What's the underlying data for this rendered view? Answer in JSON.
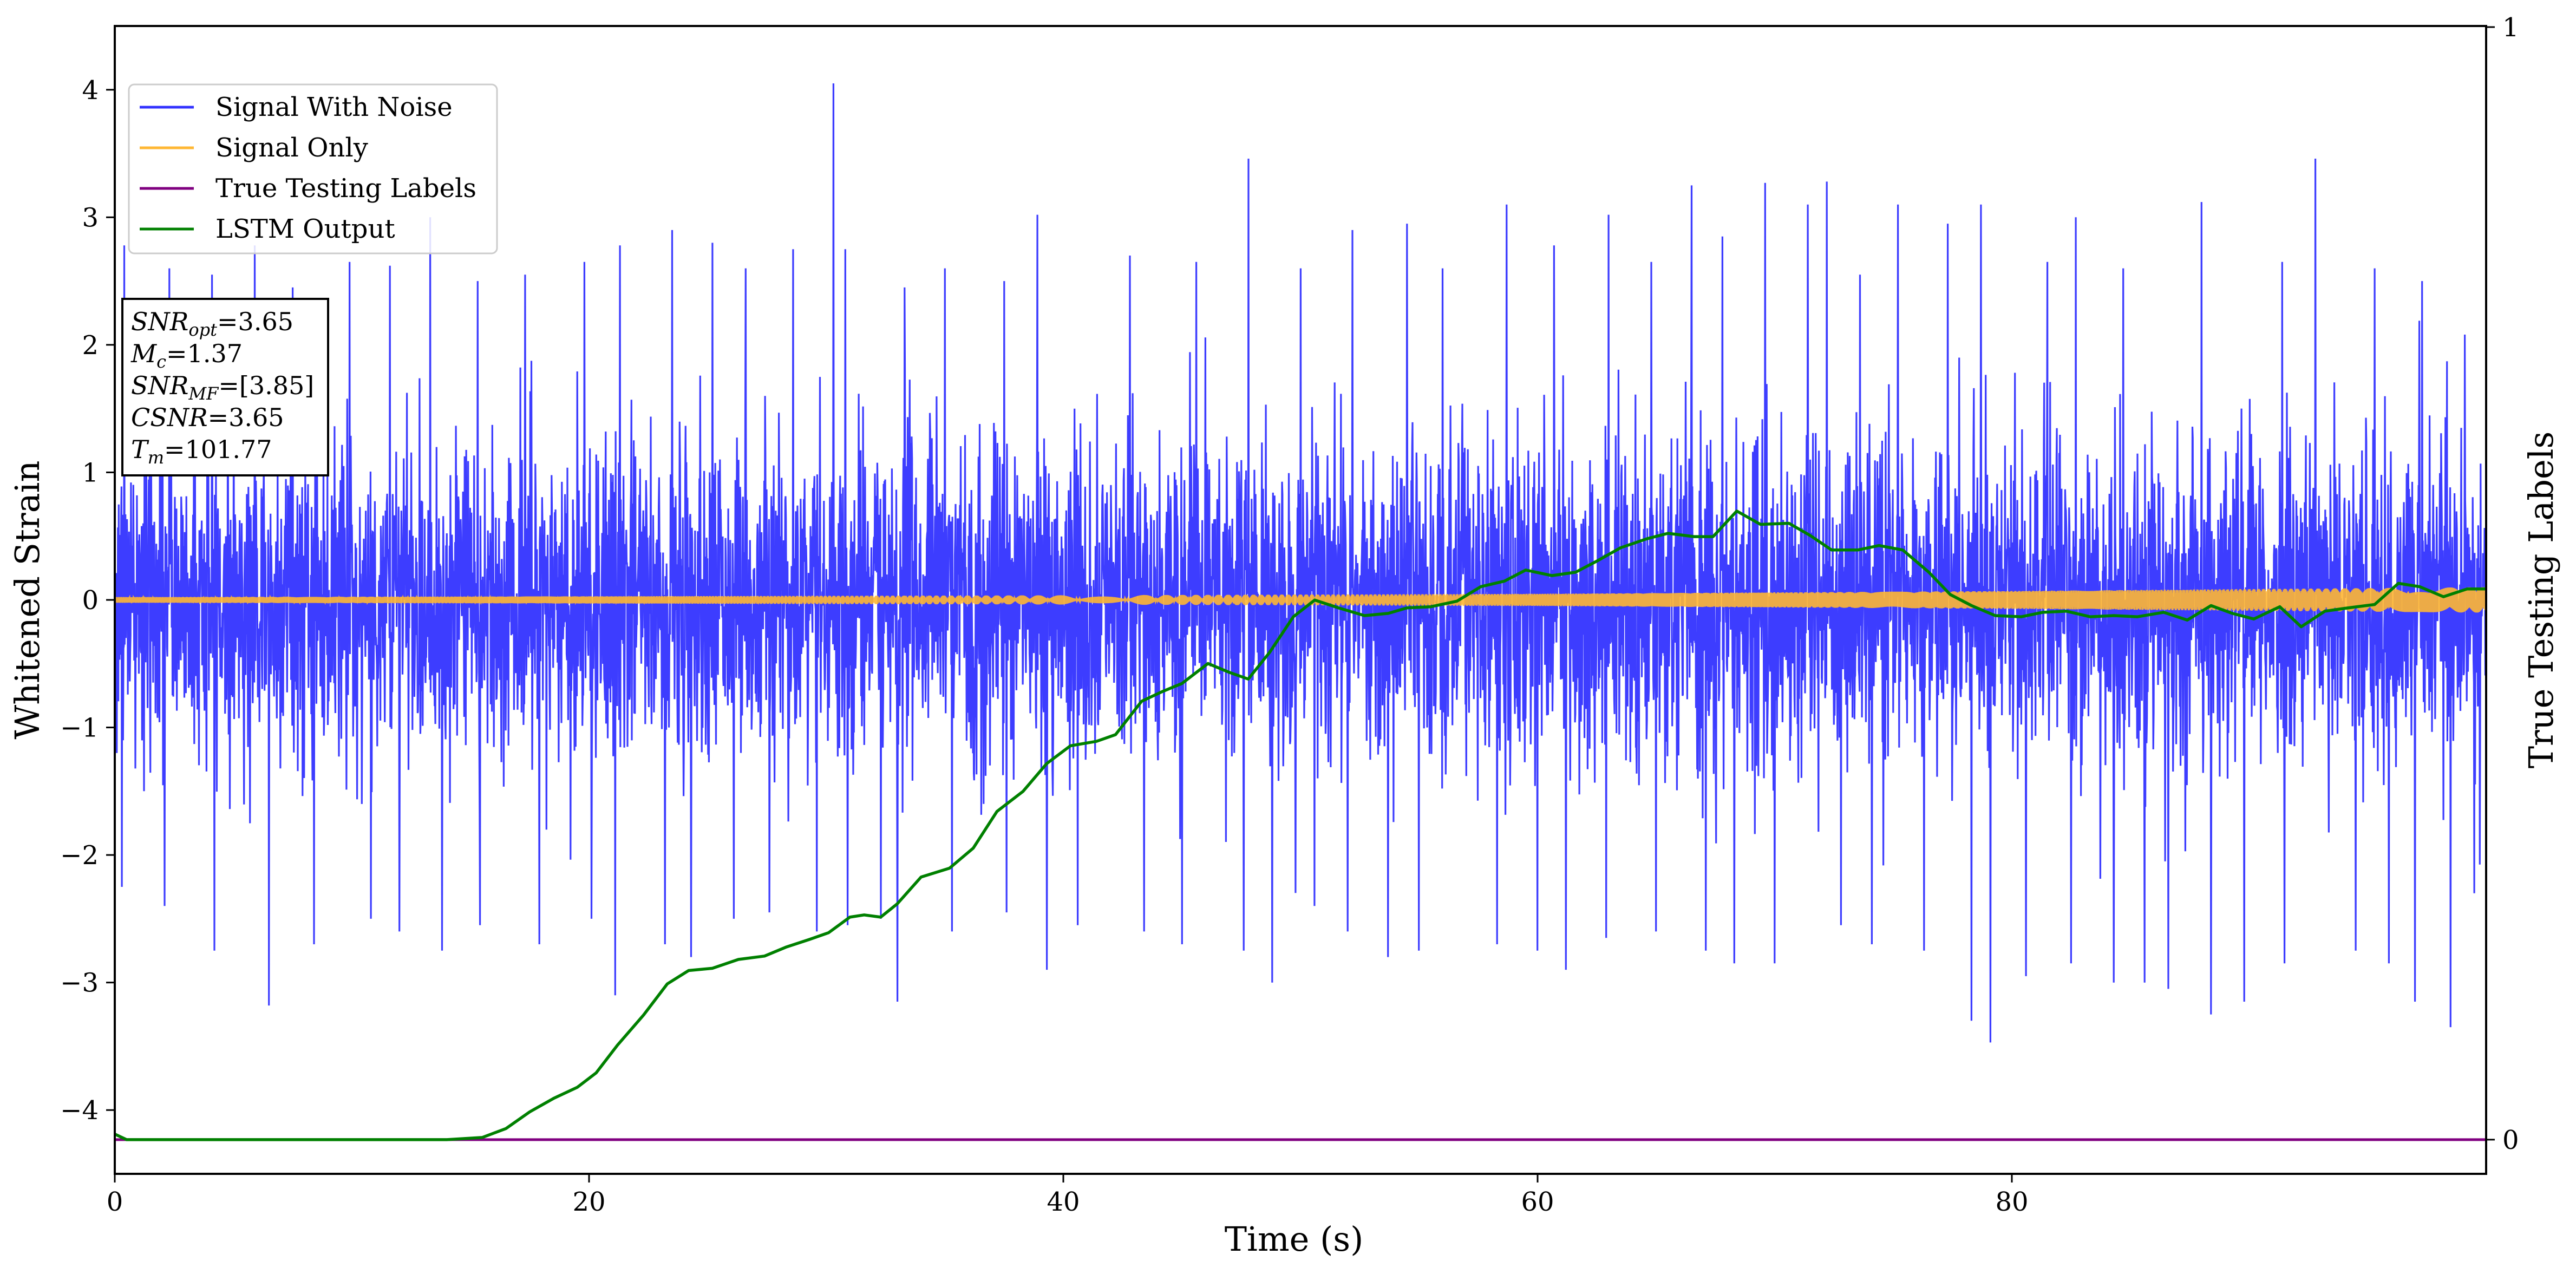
{
  "chart_data": {
    "type": "line",
    "xlabel": "Time (s)",
    "ylabel": "Whitened Strain",
    "ylabel_right": "True Testing Labels",
    "xlim": [
      0,
      100
    ],
    "ylim": [
      -4.5,
      4.5
    ],
    "ylim_right": [
      0,
      1
    ],
    "x_ticks": [
      0,
      20,
      40,
      60,
      80
    ],
    "x_tick_labels": [
      "0",
      "20",
      "40",
      "60",
      "80"
    ],
    "y_ticks": [
      -4,
      -3,
      -2,
      -1,
      0,
      1,
      2,
      3,
      4
    ],
    "y_tick_labels": [
      "−4",
      "−3",
      "−2",
      "−1",
      "0",
      "1",
      "2",
      "3",
      "4"
    ],
    "y_right_ticks": [
      0,
      1
    ],
    "y_right_tick_labels": [
      "0",
      "1"
    ],
    "grid": false,
    "legend_position": "top-left",
    "series": [
      {
        "name": "Signal With Noise",
        "axis": "left",
        "color": "#3333ff",
        "description": "whitened noise plus signal, approx. ±1.2 typical, peaks to +4.05 near t=30.3, trough -3.47 near t=79",
        "spikes_up": [
          [
            0.4,
            2.78
          ],
          [
            2.3,
            2.6
          ],
          [
            4.1,
            2.55
          ],
          [
            5.9,
            2.78
          ],
          [
            7.5,
            2.45
          ],
          [
            9.9,
            2.65
          ],
          [
            11.6,
            2.62
          ],
          [
            13.3,
            3.0
          ],
          [
            15.3,
            2.5
          ],
          [
            17.3,
            2.55
          ],
          [
            19.8,
            2.65
          ],
          [
            21.3,
            2.78
          ],
          [
            23.5,
            2.9
          ],
          [
            25.2,
            2.8
          ],
          [
            26.6,
            2.6
          ],
          [
            28.6,
            2.75
          ],
          [
            30.3,
            4.05
          ],
          [
            30.8,
            2.75
          ],
          [
            33.3,
            2.45
          ],
          [
            35.0,
            2.6
          ],
          [
            37.5,
            2.5
          ],
          [
            38.9,
            3.02
          ],
          [
            40.6,
            2.6
          ],
          [
            42.8,
            2.7
          ],
          [
            45.6,
            2.65
          ],
          [
            47.8,
            3.46
          ],
          [
            50.0,
            2.6
          ],
          [
            52.2,
            2.9
          ],
          [
            54.5,
            2.95
          ],
          [
            56.0,
            2.6
          ],
          [
            58.7,
            3.1
          ],
          [
            60.7,
            2.78
          ],
          [
            63.0,
            3.02
          ],
          [
            64.8,
            2.65
          ],
          [
            66.5,
            3.25
          ],
          [
            67.8,
            2.85
          ],
          [
            69.6,
            3.27
          ],
          [
            71.4,
            3.1
          ],
          [
            72.2,
            3.28
          ],
          [
            73.6,
            2.55
          ],
          [
            75.2,
            3.1
          ],
          [
            77.3,
            2.95
          ],
          [
            78.7,
            3.1
          ],
          [
            81.5,
            2.65
          ],
          [
            82.7,
            3.0
          ],
          [
            84.7,
            2.6
          ],
          [
            86.6,
            2.5
          ],
          [
            88.0,
            3.12
          ],
          [
            89.8,
            2.55
          ],
          [
            91.4,
            2.65
          ],
          [
            92.8,
            3.46
          ],
          [
            94.5,
            2.55
          ],
          [
            95.3,
            2.6
          ],
          [
            97.3,
            2.5
          ],
          [
            99.1,
            2.08
          ]
        ],
        "spikes_down": [
          [
            0.3,
            -2.25
          ],
          [
            2.1,
            -2.4
          ],
          [
            4.2,
            -2.75
          ],
          [
            6.5,
            -3.18
          ],
          [
            8.4,
            -2.7
          ],
          [
            10.8,
            -2.5
          ],
          [
            12.0,
            -2.6
          ],
          [
            13.8,
            -2.75
          ],
          [
            15.4,
            -2.55
          ],
          [
            17.9,
            -2.7
          ],
          [
            20.1,
            -2.5
          ],
          [
            21.1,
            -3.1
          ],
          [
            23.2,
            -2.7
          ],
          [
            24.3,
            -2.8
          ],
          [
            26.1,
            -2.5
          ],
          [
            27.6,
            -2.45
          ],
          [
            29.6,
            -2.6
          ],
          [
            30.9,
            -2.55
          ],
          [
            32.3,
            -2.5
          ],
          [
            33.0,
            -3.15
          ],
          [
            35.3,
            -2.6
          ],
          [
            37.6,
            -2.45
          ],
          [
            39.3,
            -2.9
          ],
          [
            40.6,
            -2.55
          ],
          [
            43.4,
            -2.6
          ],
          [
            45.0,
            -2.7
          ],
          [
            47.6,
            -2.75
          ],
          [
            48.8,
            -3.0
          ],
          [
            50.6,
            -2.4
          ],
          [
            52.0,
            -2.6
          ],
          [
            53.7,
            -2.8
          ],
          [
            55.0,
            -2.75
          ],
          [
            58.3,
            -2.7
          ],
          [
            60.0,
            -2.75
          ],
          [
            61.2,
            -2.9
          ],
          [
            62.9,
            -2.65
          ],
          [
            65.0,
            -2.6
          ],
          [
            67.1,
            -2.75
          ],
          [
            68.3,
            -2.85
          ],
          [
            70.0,
            -2.85
          ],
          [
            72.8,
            -2.55
          ],
          [
            74.1,
            -2.7
          ],
          [
            76.3,
            -2.75
          ],
          [
            78.3,
            -3.3
          ],
          [
            79.1,
            -3.47
          ],
          [
            80.6,
            -2.95
          ],
          [
            82.5,
            -2.85
          ],
          [
            84.3,
            -3.0
          ],
          [
            85.6,
            -3.0
          ],
          [
            86.6,
            -3.05
          ],
          [
            88.4,
            -3.25
          ],
          [
            89.8,
            -3.15
          ],
          [
            91.5,
            -2.85
          ],
          [
            94.5,
            -2.75
          ],
          [
            95.9,
            -2.85
          ],
          [
            97.0,
            -3.15
          ],
          [
            98.5,
            -3.35
          ],
          [
            99.5,
            -2.3
          ]
        ]
      },
      {
        "name": "Signal Only",
        "axis": "left",
        "color": "#ffb733",
        "description": "chirp; amplitude about 0.02 at t=0 rising to about 0.1 at t=100",
        "amplitude_envelope": [
          [
            0,
            0.022
          ],
          [
            20,
            0.028
          ],
          [
            40,
            0.036
          ],
          [
            60,
            0.048
          ],
          [
            80,
            0.07
          ],
          [
            100,
            0.1
          ]
        ]
      },
      {
        "name": "True Testing Labels",
        "axis": "right",
        "color": "#800080",
        "points": [
          [
            0,
            0
          ],
          [
            100,
            0
          ]
        ]
      },
      {
        "name": "LSTM Output",
        "axis": "right",
        "color": "#008000",
        "points": [
          [
            0,
            0.005
          ],
          [
            0.5,
            0.0
          ],
          [
            5,
            0.0
          ],
          [
            10,
            0.0
          ],
          [
            14,
            0.0
          ],
          [
            15.5,
            0.002
          ],
          [
            16.5,
            0.01
          ],
          [
            17.5,
            0.025
          ],
          [
            18.5,
            0.037
          ],
          [
            19.5,
            0.047
          ],
          [
            20.3,
            0.06
          ],
          [
            21.2,
            0.085
          ],
          [
            22.3,
            0.112
          ],
          [
            23.3,
            0.14
          ],
          [
            24.2,
            0.152
          ],
          [
            25.2,
            0.154
          ],
          [
            26.3,
            0.162
          ],
          [
            27.4,
            0.165
          ],
          [
            28.3,
            0.173
          ],
          [
            29.3,
            0.18
          ],
          [
            30.1,
            0.186
          ],
          [
            31.0,
            0.2
          ],
          [
            31.6,
            0.202
          ],
          [
            32.3,
            0.2
          ],
          [
            33.0,
            0.212
          ],
          [
            34.0,
            0.236
          ],
          [
            35.2,
            0.244
          ],
          [
            36.2,
            0.262
          ],
          [
            37.2,
            0.295
          ],
          [
            38.3,
            0.313
          ],
          [
            39.3,
            0.338
          ],
          [
            40.3,
            0.354
          ],
          [
            41.4,
            0.358
          ],
          [
            42.2,
            0.364
          ],
          [
            43.3,
            0.394
          ],
          [
            44.2,
            0.403
          ],
          [
            45.0,
            0.41
          ],
          [
            46.1,
            0.428
          ],
          [
            47.0,
            0.42
          ],
          [
            47.8,
            0.414
          ],
          [
            48.7,
            0.438
          ],
          [
            49.7,
            0.47
          ],
          [
            50.6,
            0.485
          ],
          [
            51.6,
            0.478
          ],
          [
            52.7,
            0.471
          ],
          [
            53.7,
            0.473
          ],
          [
            54.5,
            0.478
          ],
          [
            55.5,
            0.479
          ],
          [
            56.6,
            0.484
          ],
          [
            57.6,
            0.497
          ],
          [
            58.6,
            0.502
          ],
          [
            59.5,
            0.512
          ],
          [
            60.6,
            0.507
          ],
          [
            61.6,
            0.51
          ],
          [
            62.5,
            0.52
          ],
          [
            63.5,
            0.532
          ],
          [
            64.6,
            0.54
          ],
          [
            65.5,
            0.545
          ],
          [
            66.6,
            0.542
          ],
          [
            67.4,
            0.542
          ],
          [
            68.4,
            0.565
          ],
          [
            69.4,
            0.553
          ],
          [
            70.6,
            0.554
          ],
          [
            71.5,
            0.543
          ],
          [
            72.4,
            0.53
          ],
          [
            73.5,
            0.53
          ],
          [
            74.4,
            0.534
          ],
          [
            75.4,
            0.53
          ],
          [
            76.5,
            0.51
          ],
          [
            77.4,
            0.49
          ],
          [
            78.3,
            0.48
          ],
          [
            79.3,
            0.471
          ],
          [
            80.4,
            0.47
          ],
          [
            81.3,
            0.474
          ],
          [
            82.3,
            0.475
          ],
          [
            83.3,
            0.47
          ],
          [
            84.3,
            0.471
          ],
          [
            85.3,
            0.47
          ],
          [
            86.4,
            0.474
          ],
          [
            87.4,
            0.467
          ],
          [
            88.4,
            0.48
          ],
          [
            89.3,
            0.473
          ],
          [
            90.2,
            0.468
          ],
          [
            91.3,
            0.479
          ],
          [
            92.2,
            0.461
          ],
          [
            93.2,
            0.475
          ],
          [
            94.2,
            0.478
          ],
          [
            95.3,
            0.481
          ],
          [
            96.3,
            0.5
          ],
          [
            97.2,
            0.497
          ],
          [
            98.2,
            0.488
          ],
          [
            99.2,
            0.495
          ],
          [
            100,
            0.495
          ]
        ]
      }
    ],
    "annotations": [
      {
        "base": "SNR",
        "sub": "opt",
        "value": "=3.65"
      },
      {
        "base": "M",
        "sub": "c",
        "value": "=1.37"
      },
      {
        "base": "SNR",
        "sub": "MF",
        "value": "=[3.85]"
      },
      {
        "base": "CSNR",
        "sub": "",
        "value": "=3.65"
      },
      {
        "base": "T",
        "sub": "m",
        "value": "=101.77"
      }
    ]
  }
}
